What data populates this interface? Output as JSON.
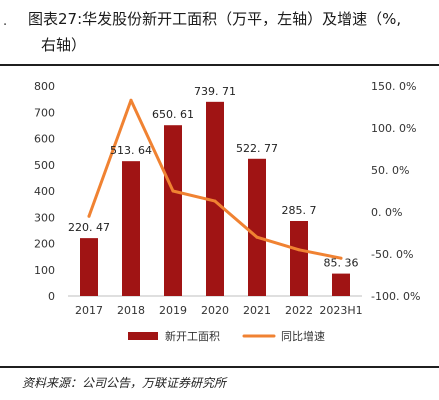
{
  "header": {
    "mark": ".",
    "title_line1": "图表27:华发股份新开工面积（万平，左轴）及增速（%,",
    "title_line2": "右轴）"
  },
  "source": "资料来源：公司公告，万联证券研究所",
  "chart_data": {
    "type": "bar",
    "categories": [
      "2017",
      "2018",
      "2019",
      "2020",
      "2021",
      "2022",
      "2023H1"
    ],
    "series": [
      {
        "name": "新开工面积",
        "type": "bar",
        "axis": "left",
        "color": "#A01414",
        "values": [
          220.47,
          513.64,
          650.61,
          739.71,
          522.77,
          285.7,
          85.36
        ],
        "labels": [
          "220. 47",
          "513. 64",
          "650. 61",
          "739. 71",
          "522. 77",
          "285. 7",
          "85. 36"
        ]
      },
      {
        "name": "同比增速",
        "type": "line",
        "axis": "right",
        "color": "#F08232",
        "values": [
          -5,
          133,
          25,
          13,
          -30,
          -45,
          -55
        ]
      }
    ],
    "y_left": {
      "ylim": [
        0,
        800
      ],
      "ticks": [
        0,
        100,
        200,
        300,
        400,
        500,
        600,
        700,
        800
      ],
      "tick_labels": [
        "0",
        "100",
        "200",
        "300",
        "400",
        "500",
        "600",
        "700",
        "800"
      ]
    },
    "y_right": {
      "ylim": [
        -100,
        150
      ],
      "ticks": [
        -100,
        -50,
        0,
        50,
        100,
        150
      ],
      "tick_labels": [
        "-100. 0%",
        "-50. 0%",
        "0. 0%",
        "50. 0%",
        "100. 0%",
        "150. 0%"
      ]
    },
    "legend_position": "bottom",
    "grid": false
  }
}
